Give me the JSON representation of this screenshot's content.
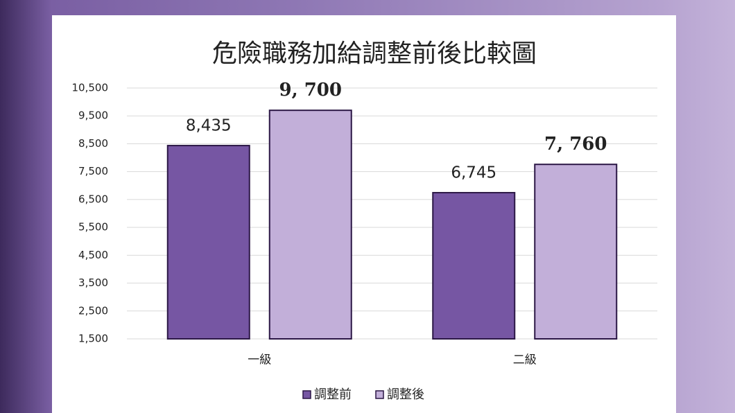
{
  "chart_data": {
    "type": "bar",
    "title": "危險職務加給調整前後比較圖",
    "categories": [
      "一級",
      "二級"
    ],
    "series": [
      {
        "name": "調整前",
        "color": "#7656a3",
        "values": [
          8435,
          6745
        ],
        "value_labels": [
          "8,435",
          "6,745"
        ]
      },
      {
        "name": "調整後",
        "color": "#c2afd9",
        "values": [
          9700,
          7760
        ],
        "value_labels": [
          "9, 700",
          "7, 760"
        ]
      }
    ],
    "ylim": [
      1500,
      10500
    ],
    "yticks": [
      {
        "value": 1500,
        "label": "1,500"
      },
      {
        "value": 2500,
        "label": "2,500"
      },
      {
        "value": 3500,
        "label": "3,500"
      },
      {
        "value": 4500,
        "label": "4,500"
      },
      {
        "value": 5500,
        "label": "5,500"
      },
      {
        "value": 6500,
        "label": "6,500"
      },
      {
        "value": 7500,
        "label": "7,500"
      },
      {
        "value": 8500,
        "label": "8,500"
      },
      {
        "value": 9500,
        "label": "9,500"
      },
      {
        "value": 10500,
        "label": "10,500"
      }
    ],
    "grid": true,
    "legend": "bottom"
  }
}
